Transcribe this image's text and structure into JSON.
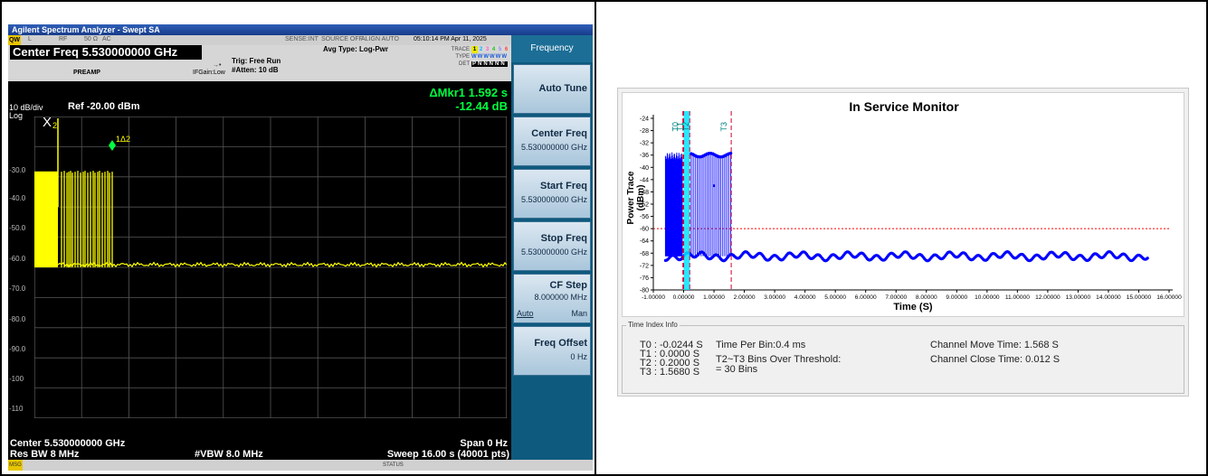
{
  "spectrum_analyzer": {
    "title": "Agilent Spectrum Analyzer - Swept SA",
    "status_row": {
      "indicator": "QW",
      "l": "L",
      "rf": "RF",
      "impedance": "50 Ω",
      "coupling": "AC",
      "sense": "SENSE:INT",
      "source": "SOURCE OFF",
      "align": "ALIGN AUTO",
      "datetime": "05:10:14 PM Apr 11, 2025"
    },
    "center_freq_display": "Center Freq 5.530000000 GHz",
    "preamp": "PREAMP",
    "ifgain": "IFGain:Low",
    "trigger": "Trig: Free Run",
    "atten": "#Atten: 10 dB",
    "avg_type": "Avg Type: Log-Pwr",
    "trace_label": "TRACE",
    "type_label": "TYPE",
    "det_label": "DET",
    "trace_numbers": [
      "1",
      "2",
      "3",
      "4",
      "5",
      "6"
    ],
    "trace_types": "WWWWWW",
    "trace_det": "PNNNNN",
    "scale_per_div": "10 dB/div",
    "scale_type": "Log",
    "ref_level": "Ref -20.00 dBm",
    "marker_readout": {
      "line1": "ΔMkr1 1.592 s",
      "line2": "-12.44 dB"
    },
    "marker_x_label": "X",
    "marker_x_sub": "2",
    "marker_delta_label": "1Δ2",
    "y_ticks": [
      "-30.0",
      "-40.0",
      "-50.0",
      "-60.0",
      "-70.0",
      "-80.0",
      "-90.0",
      "-100",
      "-110"
    ],
    "bottom": {
      "center": "Center 5.530000000 GHz",
      "span": "Span 0 Hz",
      "res_bw": "Res BW 8 MHz",
      "vbw": "#VBW 8.0 MHz",
      "sweep": "Sweep  16.00 s (40001 pts)"
    },
    "msg_label": "MSG",
    "status_label": "STATUS",
    "softkeys": {
      "title": "Frequency",
      "auto_tune": "Auto Tune",
      "center_freq": "Center Freq",
      "center_freq_value": "5.530000000 GHz",
      "start_freq": "Start Freq",
      "start_freq_value": "5.530000000 GHz",
      "stop_freq": "Stop Freq",
      "stop_freq_value": "5.530000000 GHz",
      "cf_step": "CF Step",
      "cf_step_value": "8.000000 MHz",
      "cf_step_auto": "Auto",
      "cf_step_man": "Man",
      "freq_offset": "Freq Offset",
      "freq_offset_value": "0 Hz"
    },
    "colors": {
      "trace": "#ffff00",
      "marker": "#00ff40",
      "softkey_panel": "#0e5a7e"
    }
  },
  "in_service_monitor": {
    "title": "In Service Monitor",
    "y_axis_label": "Power Trace (dBm)",
    "x_axis_label": "Time (S)",
    "y_ticks": [
      "-24",
      "-28",
      "-32",
      "-36",
      "-40",
      "-44",
      "-48",
      "-52",
      "-56",
      "-60",
      "-64",
      "-68",
      "-72",
      "-76",
      "-80"
    ],
    "x_ticks": [
      "-1.00000",
      "0.00000",
      "1.00000",
      "2.00000",
      "3.00000",
      "4.00000",
      "5.00000",
      "6.00000",
      "7.00000",
      "8.00000",
      "9.00000",
      "10.00000",
      "11.00000",
      "12.00000",
      "13.00000",
      "14.00000",
      "15.00000",
      "16.00000"
    ],
    "markers": [
      "T0",
      "T1",
      "T2",
      "T3"
    ],
    "threshold_dbm": -60,
    "colors": {
      "trace": "#0000ff",
      "threshold": "#ff0000",
      "marker_line": "#cc0033",
      "marker_label": "#008080",
      "highlight": "#00e5ff"
    },
    "time_index_info": {
      "title": "Time Index Info",
      "t0": "T0 : -0.0244  S",
      "t1": "T1 : 0.0000  S",
      "t2": "T2 : 0.2000  S",
      "t3": "T3 : 1.5680  S",
      "time_per_bin": "Time Per Bin:0.4 ms",
      "bins_over_line1": "T2~T3 Bins Over Threshold:",
      "bins_over_line2": "= 30 Bins",
      "channel_move": "Channel Move Time: 1.568  S",
      "channel_close": "Channel Close Time: 0.012  S"
    }
  }
}
